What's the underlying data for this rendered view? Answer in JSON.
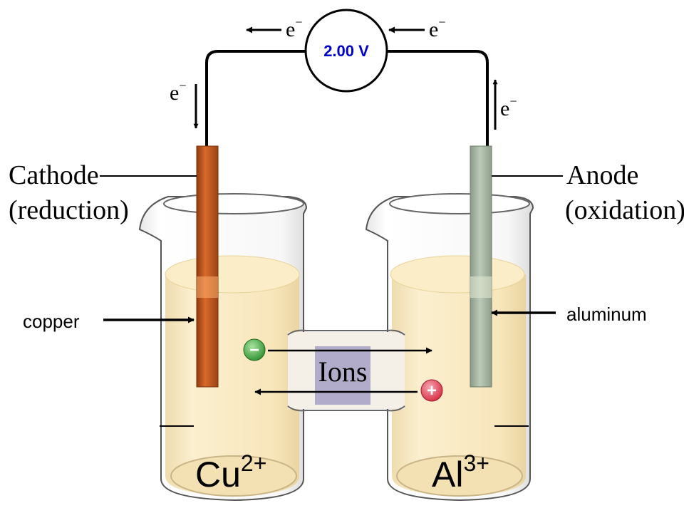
{
  "voltmeter": {
    "reading": "2.00 V",
    "reading_color": "#0000cc"
  },
  "electron_labels": {
    "base": "e",
    "charge": "−"
  },
  "labels": {
    "cathode_line1": "Cathode",
    "cathode_line2": "(reduction)",
    "anode_line1": "Anode",
    "anode_line2": "(oxidation)",
    "copper": "copper",
    "aluminum": "aluminum",
    "ions": "Ions",
    "neg_ion_symbol": "−",
    "pos_ion_symbol": "+"
  },
  "solutions": {
    "left_ion_base": "Cu",
    "left_ion_charge": "2+",
    "right_ion_base": "Al",
    "right_ion_charge": "3+"
  },
  "colors": {
    "copper_electrode": "#c0561c",
    "aluminum_electrode": "#a5b5a2",
    "solution": "#f8e7bd",
    "negative_ion": "#3aa13a",
    "positive_ion": "#e03a4d",
    "salt_bridge_band": "#a9a3c4"
  }
}
